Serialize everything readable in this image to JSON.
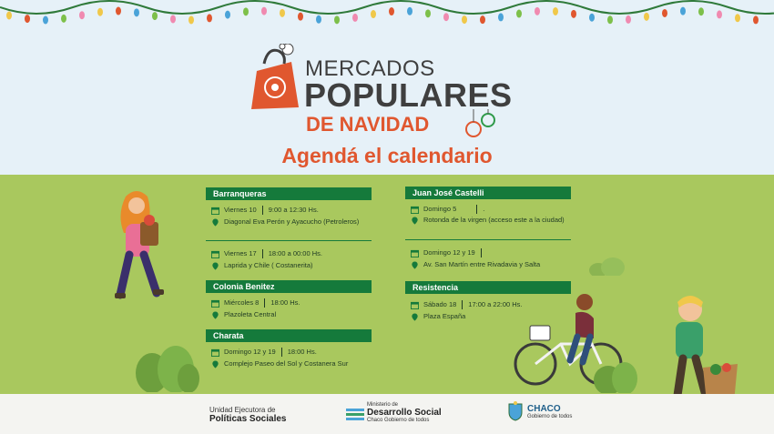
{
  "header": {
    "line1": "MERCADOS",
    "line2": "POPULARES",
    "line3": "DE NAVIDAD",
    "subtitle": "Agendá el calendario"
  },
  "locations_left": [
    {
      "name": "Barranqueras"
    },
    {
      "name": "Colonia Benitez"
    },
    {
      "name": "Charata"
    }
  ],
  "locations_right": [
    {
      "name": "Juan José Castelli"
    },
    {
      "name": "Resistencia"
    }
  ],
  "events": {
    "barranqueras_1": {
      "day": "Viernes 10",
      "time": "9:00 a 12:30 Hs.",
      "place": "Diagonal Eva Perón y Ayacucho (Petroleros)"
    },
    "barranqueras_2": {
      "day": "Viernes 17",
      "time": "18:00 a 00:00 Hs.",
      "place": "Laprida y Chile ( Costanerita)"
    },
    "colonia": {
      "day": "Miércoles 8",
      "time": "18:00 Hs.",
      "place": "Plazoleta Central"
    },
    "charata": {
      "day": "Domingo 12 y 19",
      "time": "18:00 Hs.",
      "place": "Complejo Paseo del Sol y Costanera Sur"
    },
    "castelli_1": {
      "day": "Domingo 5",
      "time": ".",
      "place": "Rotonda de la virgen (acceso este a la ciudad)"
    },
    "castelli_2": {
      "day": "Domingo 12 y 19",
      "time": "",
      "place": "Av. San Martín entre Rivadavia y Salta"
    },
    "resistencia": {
      "day": "Sábado 18",
      "time": "17:00 a 22:00 Hs.",
      "place": "Plaza España"
    }
  },
  "footer": {
    "f1_small": "Unidad Ejecutora de",
    "f1_big": "Políticas Sociales",
    "f2_small": "Ministerio de",
    "f2_big": "Desarrollo Social",
    "f2_sub": "Chaco Gobierno de todos",
    "f3_big": "CHACO",
    "f3_sub": "Gobierno de todos"
  },
  "colors": {
    "accent": "#e0572f",
    "bar": "#157a3b",
    "grass": "#a9c85e",
    "sky": "#e6f1f8"
  }
}
